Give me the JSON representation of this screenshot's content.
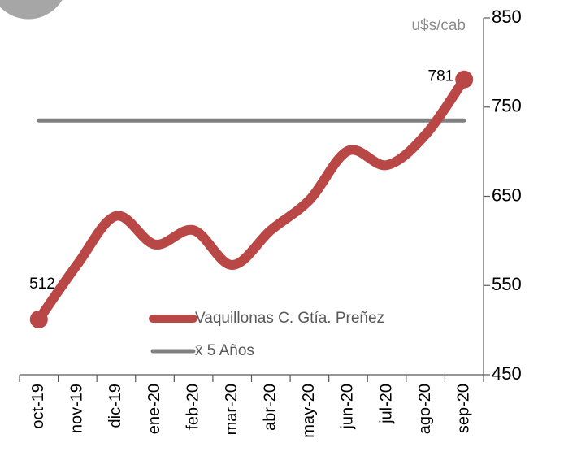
{
  "chart_data": {
    "type": "line",
    "unit_label": "u$s/cab",
    "categories": [
      "oct-19",
      "nov-19",
      "dic-19",
      "ene-20",
      "feb-20",
      "mar-20",
      "abr-20",
      "may-20",
      "jun-20",
      "jul-20",
      "ago-20",
      "sep-20"
    ],
    "series": [
      {
        "name": "Vaquillonas C. Gtía. Preñez",
        "color": "#b94745",
        "values": [
          512,
          574,
          628,
          596,
          612,
          573,
          612,
          646,
          701,
          685,
          719,
          781
        ]
      },
      {
        "name": "x̄ 5 Años",
        "color": "#808080",
        "values": [
          735,
          735,
          735,
          735,
          735,
          735,
          735,
          735,
          735,
          735,
          735,
          735
        ]
      }
    ],
    "ylim": [
      450,
      850
    ],
    "yticks": [
      450,
      550,
      650,
      750,
      850
    ],
    "grid": false,
    "legend": "bottom"
  }
}
